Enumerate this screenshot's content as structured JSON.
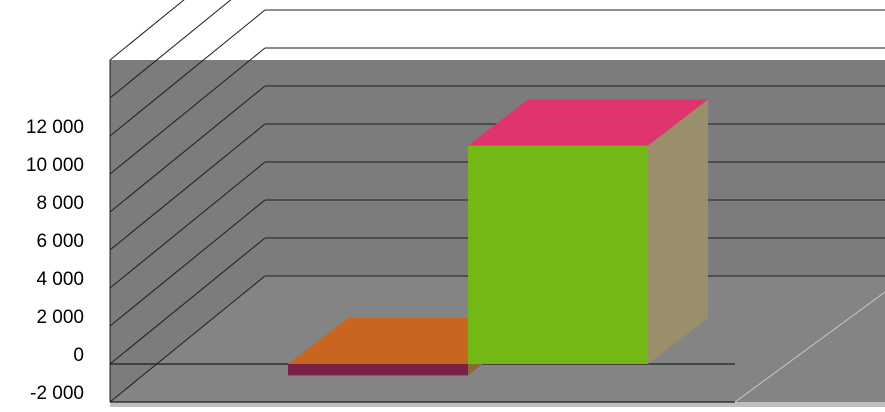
{
  "chart_data": {
    "type": "bar",
    "variant": "3d-column",
    "categories": [
      "",
      ""
    ],
    "values": [
      -600,
      11500
    ],
    "bar_colors": {
      "front": [
        "#7a1f4a",
        "#74b816"
      ],
      "top": [
        "#c8651e",
        "#e0346e"
      ],
      "side": [
        "#8a6a3a",
        "#9a8f6a"
      ]
    },
    "ylim": [
      -2000,
      12000
    ],
    "yticks": [
      -2000,
      0,
      2000,
      4000,
      6000,
      8000,
      10000,
      12000
    ],
    "ytick_labels": [
      "-2 000",
      "0",
      "2 000",
      "4 000",
      "6 000",
      "8 000",
      "10 000",
      "12 000"
    ],
    "grid": true,
    "legend": "none",
    "title": "",
    "xlabel": "",
    "ylabel": "",
    "colors": {
      "wall": "#7c7c7c",
      "floor": "#8a8a8a",
      "gridline": "#1e1e1e"
    }
  }
}
